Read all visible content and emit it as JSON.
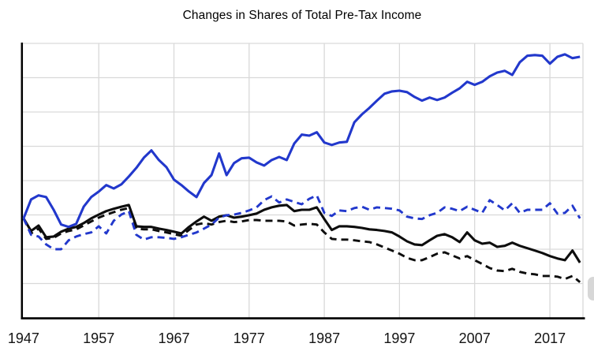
{
  "chart_data": {
    "type": "line",
    "title": "Changes in Shares of Total Pre-Tax Income",
    "xlabel": "",
    "ylabel": "",
    "legend": "none",
    "grid": "on",
    "y_axis_tick_labels": "none (y axis is unlabeled in the image)",
    "y_unit": "horizontal-gridline intervals, relative to the common 1947 starting value (0 = 1947 level)",
    "x": [
      1947,
      1948,
      1949,
      1950,
      1951,
      1952,
      1953,
      1954,
      1955,
      1956,
      1957,
      1958,
      1959,
      1960,
      1961,
      1962,
      1963,
      1964,
      1965,
      1966,
      1967,
      1968,
      1969,
      1970,
      1971,
      1972,
      1973,
      1974,
      1975,
      1976,
      1977,
      1978,
      1979,
      1980,
      1981,
      1982,
      1983,
      1984,
      1985,
      1986,
      1987,
      1988,
      1989,
      1990,
      1991,
      1992,
      1993,
      1994,
      1995,
      1996,
      1997,
      1998,
      1999,
      2000,
      2001,
      2002,
      2003,
      2004,
      2005,
      2006,
      2007,
      2008,
      2009,
      2010,
      2011,
      2012,
      2013,
      2014,
      2015,
      2016,
      2017,
      2018,
      2019,
      2020,
      2021
    ],
    "x_ticks": [
      1957,
      1967,
      1977,
      1987,
      1997,
      2007,
      2017
    ],
    "x_tick_labels": [
      "1947",
      "1957",
      "1967",
      "1977",
      "1987",
      "1997",
      "2007",
      "2017"
    ],
    "x_tick_label_years": [
      1947,
      1957,
      1967,
      1977,
      1987,
      1997,
      2007,
      2017
    ],
    "xlim": [
      1946.7,
      2021.4
    ],
    "ylim": [
      -2.9,
      5.1
    ],
    "y_gridlines_at": [
      -1.9,
      -0.9,
      0.1,
      1.1,
      2.1,
      3.1,
      4.1,
      5.1
    ],
    "series": [
      {
        "name": "black-dashed",
        "color": "#0d0d0d",
        "style": "dashed",
        "values": [
          0,
          -0.44,
          -0.3,
          -0.6,
          -0.57,
          -0.44,
          -0.37,
          -0.32,
          -0.21,
          -0.09,
          0.02,
          0.11,
          0.18,
          0.25,
          0.3,
          -0.3,
          -0.32,
          -0.32,
          -0.37,
          -0.41,
          -0.46,
          -0.51,
          -0.34,
          -0.18,
          -0.14,
          -0.18,
          -0.11,
          -0.07,
          -0.11,
          -0.09,
          -0.05,
          -0.05,
          -0.07,
          -0.07,
          -0.07,
          -0.09,
          -0.21,
          -0.18,
          -0.16,
          -0.18,
          -0.41,
          -0.6,
          -0.62,
          -0.62,
          -0.64,
          -0.67,
          -0.69,
          -0.76,
          -0.85,
          -0.94,
          -1.03,
          -1.15,
          -1.22,
          -1.22,
          -1.13,
          -1.03,
          -0.99,
          -1.08,
          -1.17,
          -1.1,
          -1.22,
          -1.33,
          -1.45,
          -1.52,
          -1.54,
          -1.47,
          -1.56,
          -1.61,
          -1.63,
          -1.68,
          -1.68,
          -1.7,
          -1.77,
          -1.68,
          -1.86
        ]
      },
      {
        "name": "black-solid",
        "color": "#0d0d0d",
        "style": "solid",
        "values": [
          0,
          -0.37,
          -0.21,
          -0.55,
          -0.53,
          -0.39,
          -0.3,
          -0.25,
          -0.14,
          0.0,
          0.11,
          0.21,
          0.28,
          0.34,
          0.39,
          -0.23,
          -0.25,
          -0.25,
          -0.3,
          -0.34,
          -0.39,
          -0.44,
          -0.25,
          -0.09,
          0.05,
          -0.07,
          0.05,
          0.09,
          0.02,
          0.05,
          0.09,
          0.14,
          0.25,
          0.32,
          0.37,
          0.39,
          0.21,
          0.25,
          0.25,
          0.32,
          -0.02,
          -0.34,
          -0.23,
          -0.23,
          -0.25,
          -0.28,
          -0.32,
          -0.34,
          -0.37,
          -0.41,
          -0.53,
          -0.67,
          -0.76,
          -0.78,
          -0.64,
          -0.51,
          -0.46,
          -0.55,
          -0.69,
          -0.41,
          -0.64,
          -0.74,
          -0.71,
          -0.83,
          -0.8,
          -0.71,
          -0.8,
          -0.87,
          -0.94,
          -1.01,
          -1.1,
          -1.17,
          -1.22,
          -0.94,
          -1.29
        ]
      },
      {
        "name": "blue-dashed",
        "color": "#2238cc",
        "style": "dashed",
        "values": [
          0,
          -0.48,
          -0.53,
          -0.76,
          -0.9,
          -0.9,
          -0.64,
          -0.53,
          -0.46,
          -0.41,
          -0.23,
          -0.44,
          -0.07,
          0.11,
          0.21,
          -0.48,
          -0.62,
          -0.55,
          -0.55,
          -0.57,
          -0.6,
          -0.55,
          -0.48,
          -0.41,
          -0.3,
          -0.18,
          0.02,
          0.09,
          0.11,
          0.16,
          0.23,
          0.32,
          0.53,
          0.64,
          0.46,
          0.55,
          0.48,
          0.41,
          0.57,
          0.67,
          0.16,
          0.07,
          0.23,
          0.21,
          0.3,
          0.34,
          0.25,
          0.32,
          0.3,
          0.28,
          0.23,
          0.05,
          0.0,
          -0.02,
          0.09,
          0.16,
          0.32,
          0.28,
          0.21,
          0.34,
          0.25,
          0.16,
          0.53,
          0.39,
          0.23,
          0.44,
          0.16,
          0.25,
          0.25,
          0.25,
          0.44,
          0.14,
          0.16,
          0.37,
          0.0
        ]
      },
      {
        "name": "blue-solid",
        "color": "#2238cc",
        "style": "solid",
        "values": [
          0,
          0.55,
          0.67,
          0.62,
          0.25,
          -0.18,
          -0.25,
          -0.16,
          0.34,
          0.62,
          0.78,
          0.97,
          0.87,
          0.99,
          1.22,
          1.47,
          1.77,
          1.98,
          1.7,
          1.49,
          1.13,
          0.97,
          0.78,
          0.62,
          1.03,
          1.26,
          1.89,
          1.26,
          1.61,
          1.75,
          1.77,
          1.63,
          1.54,
          1.7,
          1.79,
          1.7,
          2.18,
          2.44,
          2.41,
          2.51,
          2.21,
          2.14,
          2.21,
          2.23,
          2.8,
          3.03,
          3.22,
          3.43,
          3.63,
          3.7,
          3.72,
          3.68,
          3.54,
          3.43,
          3.52,
          3.45,
          3.52,
          3.66,
          3.79,
          3.98,
          3.89,
          3.98,
          4.14,
          4.25,
          4.3,
          4.18,
          4.55,
          4.74,
          4.76,
          4.74,
          4.51,
          4.71,
          4.78,
          4.67,
          4.71
        ]
      }
    ]
  },
  "page": {
    "background": "#ffffff",
    "gridline_color": "#d9d9d9",
    "axis_color": "#000000",
    "tick_label_color": "#141414",
    "scroll_fragment_color": "#d7d7d7"
  }
}
